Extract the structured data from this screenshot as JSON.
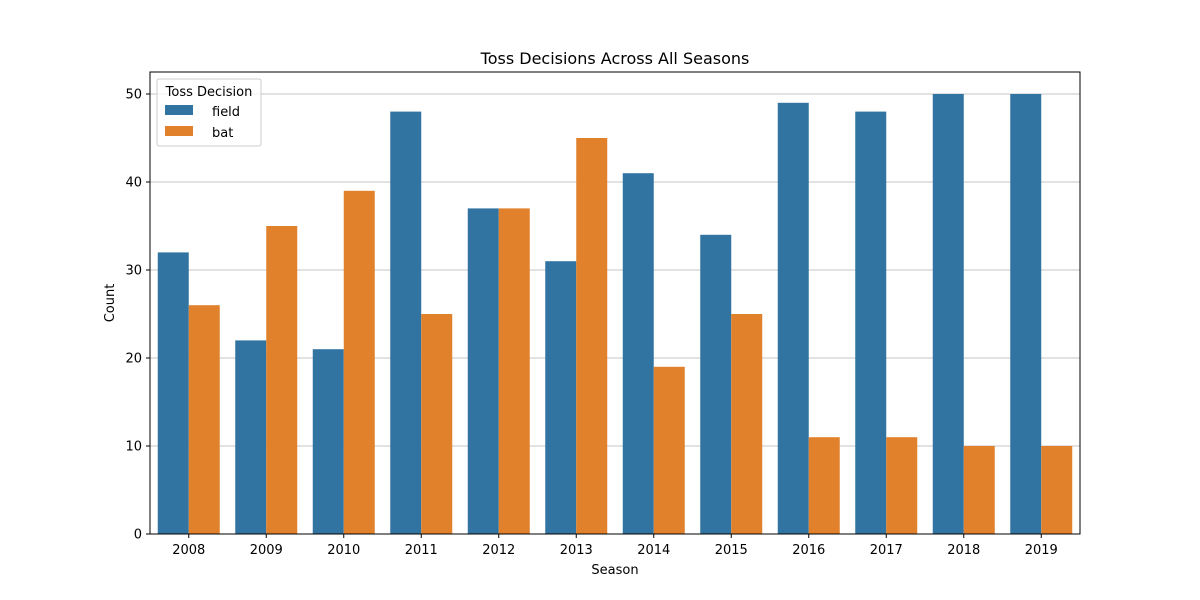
{
  "chart_data": {
    "type": "bar",
    "title": "Toss Decisions Across All Seasons",
    "xlabel": "Season",
    "ylabel": "Count",
    "categories": [
      "2008",
      "2009",
      "2010",
      "2011",
      "2012",
      "2013",
      "2014",
      "2015",
      "2016",
      "2017",
      "2018",
      "2019"
    ],
    "series": [
      {
        "name": "field",
        "color": "#3274a1",
        "values": [
          32,
          22,
          21,
          48,
          37,
          31,
          41,
          34,
          49,
          48,
          50,
          50
        ]
      },
      {
        "name": "bat",
        "color": "#e1812c",
        "values": [
          26,
          35,
          39,
          25,
          37,
          45,
          19,
          25,
          11,
          11,
          10,
          10
        ]
      }
    ],
    "ylim": [
      0,
      52.5
    ],
    "yticks": [
      0,
      10,
      20,
      30,
      40,
      50
    ],
    "grid": "horizontal",
    "legend": {
      "title": "Toss Decision",
      "placement": "top-left"
    }
  }
}
